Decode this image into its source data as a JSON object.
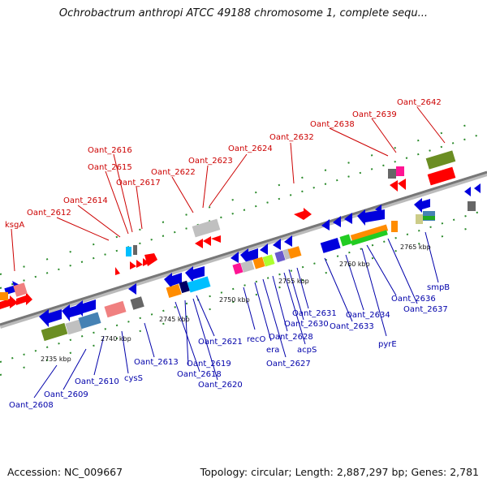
{
  "title": "Ochrobactrum anthropi ATCC 49188 chromosome 1, complete sequ...",
  "footer": {
    "accession": "Accession: NC_009667",
    "summary": "Topology: circular; Length: 2,887,297 bp; Genes: 2,781"
  },
  "scale_labels": [
    "2735 kbp",
    "2740 kbp",
    "2745 kbp",
    "2750 kbp",
    "2755 kbp",
    "2760 kbp",
    "2765 kbp"
  ],
  "red_labels": [
    "ksgA",
    "Oant_2612",
    "Oant_2614",
    "Oant_2615",
    "Oant_2616",
    "Oant_2617",
    "Oant_2622",
    "Oant_2623",
    "Oant_2624",
    "Oant_2632",
    "Oant_2638",
    "Oant_2639",
    "Oant_2642"
  ],
  "blue_labels": [
    "Oant_2608",
    "Oant_2609",
    "Oant_2610",
    "cysS",
    "Oant_2613",
    "Oant_2618",
    "Oant_2619",
    "Oant_2620",
    "Oant_2621",
    "recO",
    "era",
    "Oant_2627",
    "Oant_2628",
    "acpS",
    "Oant_2630",
    "Oant_2631",
    "Oant_2633",
    "Oant_2634",
    "pyrE",
    "Oant_2636",
    "Oant_2637",
    "smpB"
  ]
}
